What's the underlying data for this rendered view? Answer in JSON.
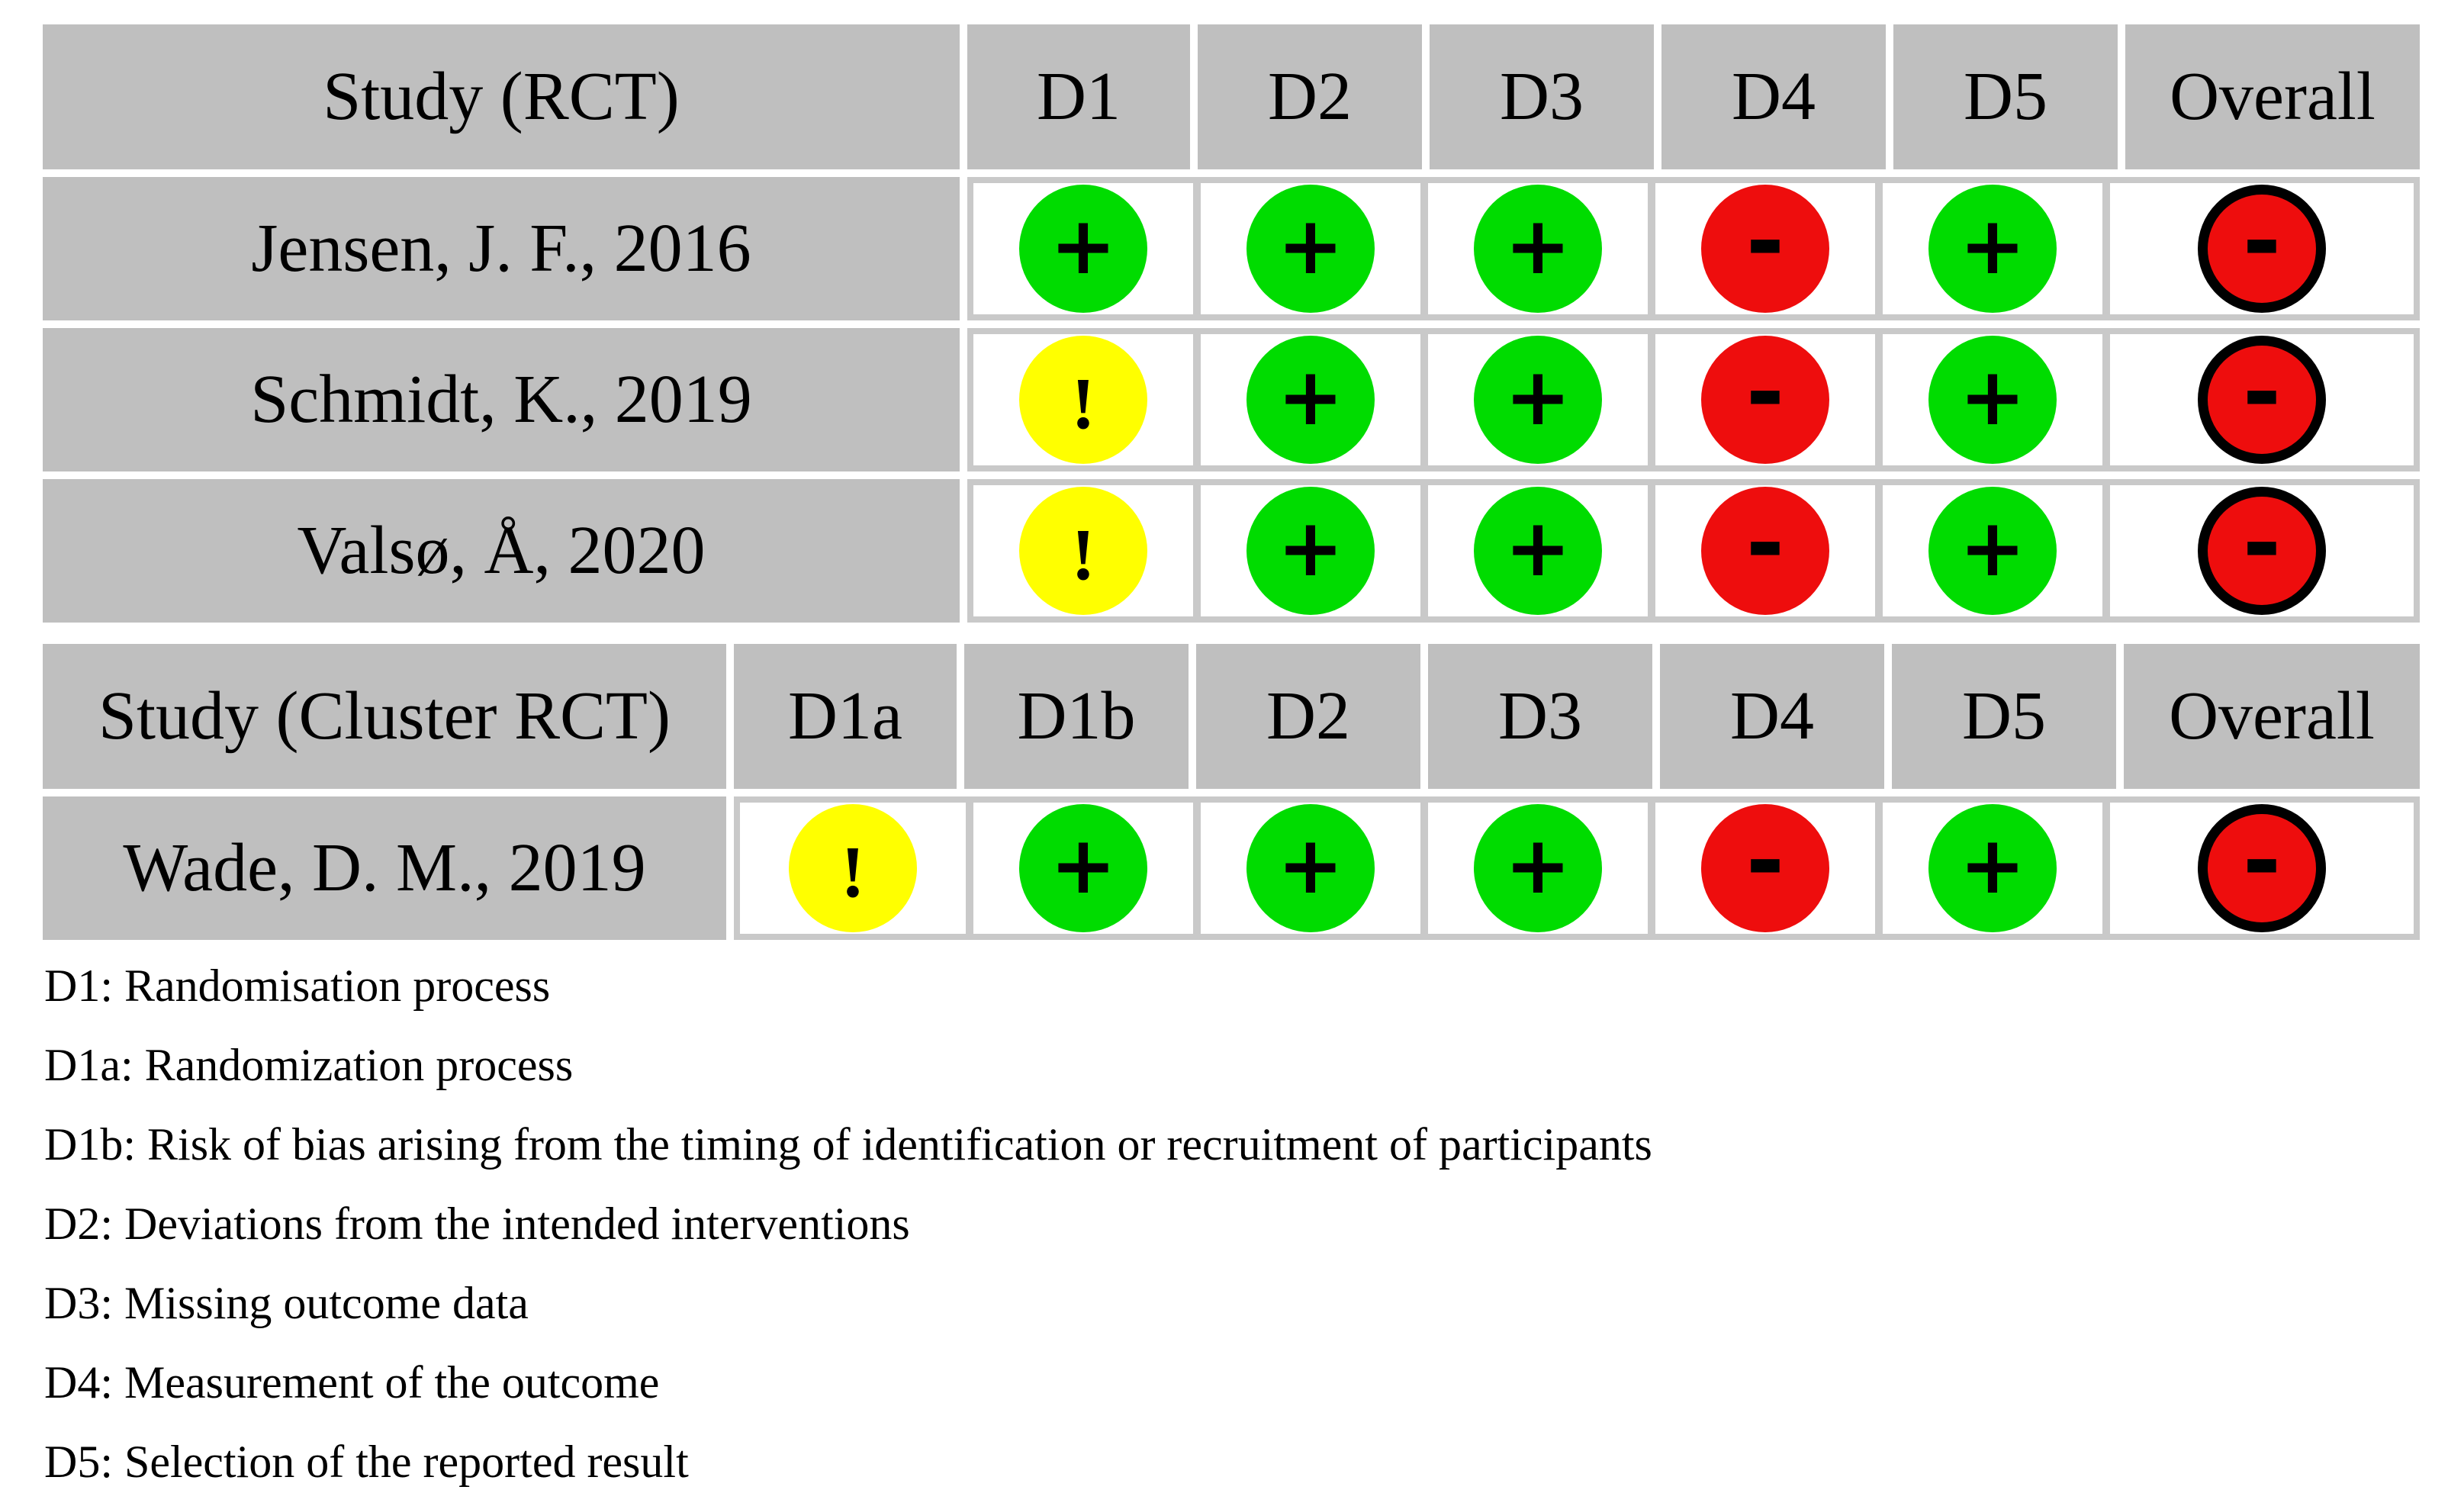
{
  "colors": {
    "low": "#00dc00",
    "some": "#ffff00",
    "high": "#ee0d0d",
    "cell": "#bfbfbf",
    "grid": "#c9c9c9",
    "symbol": "#000000"
  },
  "ui": {
    "rct": {
      "headers": [
        "Study (RCT)",
        "D1",
        "D2",
        "D3",
        "D4",
        "D5",
        "Overall"
      ],
      "rows": [
        {
          "study": "Jensen, J. F., 2016",
          "cells": [
            {
              "symbol": "+",
              "level": "low"
            },
            {
              "symbol": "+",
              "level": "low"
            },
            {
              "symbol": "+",
              "level": "low"
            },
            {
              "symbol": "-",
              "level": "high"
            },
            {
              "symbol": "+",
              "level": "low"
            },
            {
              "symbol": "-",
              "level": "high"
            }
          ]
        },
        {
          "study": "Schmidt, K., 2019",
          "cells": [
            {
              "symbol": "!",
              "level": "some"
            },
            {
              "symbol": "+",
              "level": "low"
            },
            {
              "symbol": "+",
              "level": "low"
            },
            {
              "symbol": "-",
              "level": "high"
            },
            {
              "symbol": "+",
              "level": "low"
            },
            {
              "symbol": "-",
              "level": "high"
            }
          ]
        },
        {
          "study": "Valsø, Å, 2020",
          "cells": [
            {
              "symbol": "!",
              "level": "some"
            },
            {
              "symbol": "+",
              "level": "low"
            },
            {
              "symbol": "+",
              "level": "low"
            },
            {
              "symbol": "-",
              "level": "high"
            },
            {
              "symbol": "+",
              "level": "low"
            },
            {
              "symbol": "-",
              "level": "high"
            }
          ]
        }
      ]
    },
    "cluster": {
      "headers": [
        "Study (Cluster RCT)",
        "D1a",
        "D1b",
        "D2",
        "D3",
        "D4",
        "D5",
        "Overall"
      ],
      "rows": [
        {
          "study": "Wade, D. M., 2019",
          "cells": [
            {
              "symbol": "!",
              "level": "some"
            },
            {
              "symbol": "+",
              "level": "low"
            },
            {
              "symbol": "+",
              "level": "low"
            },
            {
              "symbol": "+",
              "level": "low"
            },
            {
              "symbol": "-",
              "level": "high"
            },
            {
              "symbol": "+",
              "level": "low"
            },
            {
              "symbol": "-",
              "level": "high"
            }
          ]
        }
      ]
    },
    "legend": [
      "D1: Randomisation process",
      "D1a: Randomization process",
      "D1b: Risk of bias arising from the timing of identification or recruitment of participants",
      "D2: Deviations from the intended interventions",
      "D3: Missing outcome data",
      "D4: Measurement of the outcome",
      "D5: Selection of the reported result"
    ]
  },
  "chart_data": {
    "type": "table",
    "subtype": "risk-of-bias-traffic-light",
    "judgement_key": {
      "+": "low risk",
      "!": "some concerns",
      "-": "high risk"
    },
    "tables": [
      {
        "name": "Study (RCT)",
        "domains": [
          "D1",
          "D2",
          "D3",
          "D4",
          "D5",
          "Overall"
        ],
        "studies": [
          {
            "study": "Jensen, J. F., 2016",
            "judgements": [
              "low",
              "low",
              "low",
              "high",
              "low",
              "high"
            ]
          },
          {
            "study": "Schmidt, K., 2019",
            "judgements": [
              "some concerns",
              "low",
              "low",
              "high",
              "low",
              "high"
            ]
          },
          {
            "study": "Valsø, Å, 2020",
            "judgements": [
              "some concerns",
              "low",
              "low",
              "high",
              "low",
              "high"
            ]
          }
        ]
      },
      {
        "name": "Study (Cluster RCT)",
        "domains": [
          "D1a",
          "D1b",
          "D2",
          "D3",
          "D4",
          "D5",
          "Overall"
        ],
        "studies": [
          {
            "study": "Wade, D. M., 2019",
            "judgements": [
              "some concerns",
              "low",
              "low",
              "low",
              "high",
              "low",
              "high"
            ]
          }
        ]
      }
    ],
    "legend": [
      "D1: Randomisation process",
      "D1a: Randomization process",
      "D1b: Risk of bias arising from the timing of identification or recruitment of participants",
      "D2: Deviations from the intended interventions",
      "D3: Missing outcome data",
      "D4: Measurement of the outcome",
      "D5: Selection of the reported result"
    ]
  }
}
